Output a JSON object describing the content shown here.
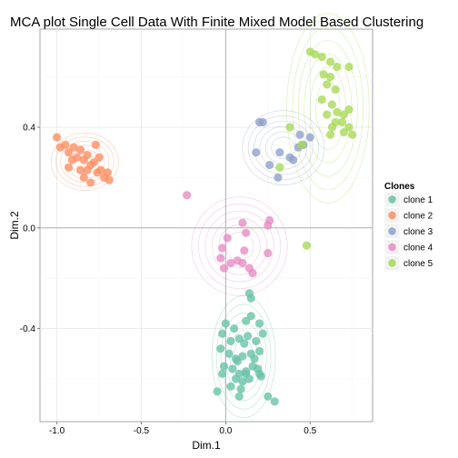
{
  "chart_data": {
    "type": "scatter",
    "title": "MCA plot Single Cell Data With Finite Mixed Model Based Clustering",
    "xlabel": "Dim.1",
    "ylabel": "Dim.2",
    "xlim": [
      -1.1,
      0.87
    ],
    "ylim": [
      -0.77,
      0.79
    ],
    "xticks": [
      -1.0,
      -0.5,
      0.0,
      0.5
    ],
    "xtick_labels": [
      "-1.0",
      "-0.5",
      "0.0",
      "0.5"
    ],
    "yticks": [
      -0.4,
      0.0,
      0.4
    ],
    "ytick_labels": [
      "-0.4",
      "0.0",
      "0.4"
    ],
    "reference_lines": {
      "x": 0,
      "y": 0
    },
    "grid": true,
    "legend": {
      "title": "Clones",
      "placement": "right"
    },
    "density_contours": true,
    "series": [
      {
        "name": "clone 1",
        "color": "#66c2a5",
        "points": [
          [
            0.0,
            -0.38
          ],
          [
            0.05,
            -0.4
          ],
          [
            0.12,
            -0.37
          ],
          [
            0.15,
            -0.35
          ],
          [
            0.2,
            -0.38
          ],
          [
            0.15,
            -0.28
          ],
          [
            0.14,
            -0.26
          ],
          [
            -0.02,
            -0.42
          ],
          [
            0.03,
            -0.45
          ],
          [
            0.08,
            -0.44
          ],
          [
            0.13,
            -0.43
          ],
          [
            0.18,
            -0.45
          ],
          [
            0.22,
            -0.42
          ],
          [
            -0.03,
            -0.48
          ],
          [
            0.02,
            -0.5
          ],
          [
            0.06,
            -0.52
          ],
          [
            0.1,
            -0.51
          ],
          [
            0.15,
            -0.5
          ],
          [
            0.2,
            -0.49
          ],
          [
            -0.01,
            -0.55
          ],
          [
            0.04,
            -0.56
          ],
          [
            0.08,
            -0.58
          ],
          [
            0.12,
            -0.57
          ],
          [
            0.16,
            -0.55
          ],
          [
            0.19,
            -0.56
          ],
          [
            -0.02,
            -0.58
          ],
          [
            0.06,
            -0.6
          ],
          [
            0.1,
            -0.61
          ],
          [
            0.14,
            -0.6
          ],
          [
            0.21,
            -0.59
          ],
          [
            -0.05,
            -0.65
          ],
          [
            0.03,
            -0.63
          ],
          [
            0.09,
            -0.64
          ],
          [
            0.08,
            -0.67
          ],
          [
            0.12,
            -0.58
          ],
          [
            0.2,
            -0.58
          ],
          [
            0.25,
            -0.67
          ],
          [
            0.29,
            -0.69
          ],
          [
            0.07,
            -0.53
          ],
          [
            0.11,
            -0.46
          ],
          [
            0.17,
            -0.52
          ]
        ]
      },
      {
        "name": "clone 2",
        "color": "#fc8d62",
        "points": [
          [
            -1.0,
            0.36
          ],
          [
            -0.98,
            0.32
          ],
          [
            -0.95,
            0.33
          ],
          [
            -0.93,
            0.3
          ],
          [
            -0.9,
            0.32
          ],
          [
            -0.88,
            0.28
          ],
          [
            -0.86,
            0.31
          ],
          [
            -0.84,
            0.27
          ],
          [
            -0.82,
            0.29
          ],
          [
            -0.8,
            0.25
          ],
          [
            -0.78,
            0.26
          ],
          [
            -0.76,
            0.22
          ],
          [
            -0.74,
            0.23
          ],
          [
            -0.72,
            0.2
          ],
          [
            -0.7,
            0.22
          ],
          [
            -0.69,
            0.19
          ],
          [
            -0.84,
            0.2
          ],
          [
            -0.86,
            0.23
          ],
          [
            -0.8,
            0.18
          ],
          [
            -0.91,
            0.27
          ],
          [
            -0.77,
            0.33
          ],
          [
            -0.93,
            0.24
          ],
          [
            -0.75,
            0.28
          ],
          [
            -0.82,
            0.23
          ]
        ]
      },
      {
        "name": "clone 3",
        "color": "#8da0cb",
        "points": [
          [
            0.2,
            0.42
          ],
          [
            0.22,
            0.42
          ],
          [
            0.18,
            0.3
          ],
          [
            0.26,
            0.25
          ],
          [
            0.32,
            0.3
          ],
          [
            0.4,
            0.27
          ],
          [
            0.43,
            0.32
          ],
          [
            0.46,
            0.33
          ],
          [
            0.44,
            0.37
          ],
          [
            0.5,
            0.36
          ],
          [
            0.31,
            0.2
          ],
          [
            0.38,
            0.28
          ]
        ]
      },
      {
        "name": "clone 4",
        "color": "#e78ac3",
        "points": [
          [
            -0.23,
            0.13
          ],
          [
            0.26,
            0.03
          ],
          [
            0.25,
            0.01
          ],
          [
            0.25,
            -0.1
          ],
          [
            0.1,
            0.02
          ],
          [
            0.12,
            -0.02
          ],
          [
            0.11,
            -0.09
          ],
          [
            0.1,
            -0.14
          ],
          [
            0.14,
            -0.16
          ],
          [
            0.16,
            -0.18
          ],
          [
            0.01,
            -0.04
          ],
          [
            -0.02,
            -0.08
          ],
          [
            -0.03,
            -0.12
          ],
          [
            -0.01,
            -0.16
          ],
          [
            0.03,
            -0.14
          ],
          [
            0.07,
            -0.13
          ]
        ]
      },
      {
        "name": "clone 5",
        "color": "#a6d854",
        "points": [
          [
            0.32,
            0.24
          ],
          [
            0.5,
            0.7
          ],
          [
            0.53,
            0.69
          ],
          [
            0.57,
            0.68
          ],
          [
            0.62,
            0.66
          ],
          [
            0.66,
            0.64
          ],
          [
            0.73,
            0.64
          ],
          [
            0.58,
            0.61
          ],
          [
            0.62,
            0.6
          ],
          [
            0.6,
            0.57
          ],
          [
            0.65,
            0.55
          ],
          [
            0.57,
            0.51
          ],
          [
            0.63,
            0.49
          ],
          [
            0.66,
            0.46
          ],
          [
            0.7,
            0.45
          ],
          [
            0.73,
            0.47
          ],
          [
            0.6,
            0.45
          ],
          [
            0.65,
            0.42
          ],
          [
            0.69,
            0.42
          ],
          [
            0.73,
            0.4
          ],
          [
            0.63,
            0.4
          ],
          [
            0.62,
            0.37
          ],
          [
            0.7,
            0.38
          ],
          [
            0.75,
            0.37
          ],
          [
            0.45,
            0.33
          ],
          [
            0.38,
            0.4
          ],
          [
            0.48,
            -0.07
          ]
        ]
      }
    ]
  }
}
